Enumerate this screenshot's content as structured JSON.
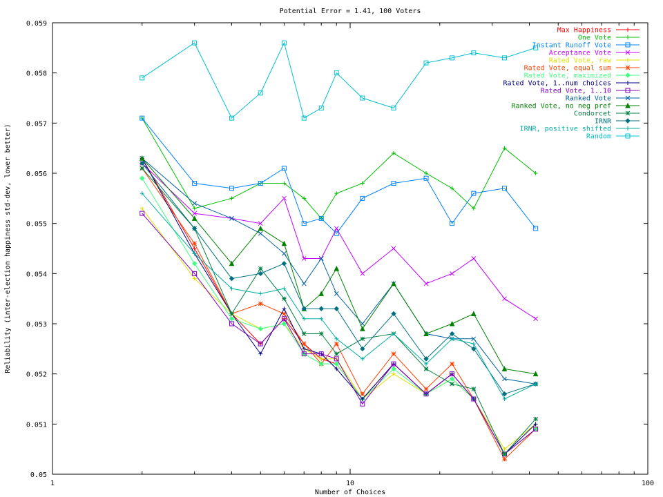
{
  "chart_data": {
    "type": "line",
    "title": "Potential Error = 1.41, 100 Voters",
    "xlabel": "Number of Choices",
    "ylabel": "Reliability (inter-election happiness std-dev, lower better)",
    "x_scale": "log",
    "xlim": [
      1,
      100
    ],
    "ylim": [
      0.05,
      0.059
    ],
    "x_ticks": [
      "1",
      "10",
      "100"
    ],
    "y_ticks": [
      "0.05",
      "0.051",
      "0.052",
      "0.053",
      "0.054",
      "0.055",
      "0.056",
      "0.057",
      "0.058",
      "0.059"
    ],
    "x": [
      2,
      3,
      4,
      5,
      6,
      7,
      8,
      9,
      11,
      14,
      18,
      22,
      26,
      33,
      42
    ],
    "legend_position": "top-right",
    "series": [
      {
        "name": "Max Happiness",
        "color": "#ff0000",
        "marker": "plus",
        "values": [
          0.0563,
          0.0545,
          0.0532,
          0.0526,
          0.0531,
          0.0526,
          0.0523,
          0.0522,
          0.0515,
          0.0522,
          0.0516,
          0.052,
          0.0515,
          0.0504,
          0.0509
        ]
      },
      {
        "name": "One Vote",
        "color": "#00c000",
        "marker": "plus",
        "values": [
          0.0571,
          0.0553,
          0.0555,
          0.0558,
          0.0558,
          0.0555,
          0.0551,
          0.0556,
          0.0558,
          0.0564,
          0.056,
          0.0557,
          0.0553,
          0.0565,
          0.056
        ]
      },
      {
        "name": "Instant Runoff Vote",
        "color": "#0080ff",
        "marker": "square",
        "values": [
          0.0571,
          0.0558,
          0.0557,
          0.0558,
          0.0561,
          0.055,
          0.0551,
          0.0548,
          0.0555,
          0.0558,
          0.0559,
          0.055,
          0.0556,
          0.0557,
          0.0549
        ]
      },
      {
        "name": "Acceptance Vote",
        "color": "#c000ff",
        "marker": "x",
        "values": [
          0.0562,
          0.0552,
          0.0551,
          0.055,
          0.0555,
          0.0543,
          0.0543,
          0.0549,
          0.054,
          0.0545,
          0.0538,
          0.054,
          0.0543,
          0.0535,
          0.0531
        ]
      },
      {
        "name": "Rated Vote, raw",
        "color": "#e0e000",
        "marker": "plus",
        "values": [
          0.0553,
          0.0539,
          0.0532,
          0.0529,
          0.053,
          0.0525,
          0.0523,
          0.0523,
          0.0515,
          0.052,
          0.0516,
          0.0519,
          0.0515,
          0.0505,
          0.051
        ]
      },
      {
        "name": "Rated Vote, equal sum",
        "color": "#ff4000",
        "marker": "star",
        "values": [
          0.0561,
          0.0546,
          0.0532,
          0.0534,
          0.0532,
          0.0526,
          0.0522,
          0.0526,
          0.0516,
          0.0524,
          0.0517,
          0.0522,
          0.0515,
          0.0503,
          0.0509
        ]
      },
      {
        "name": "Rated Vote, maximized",
        "color": "#40ff80",
        "marker": "diamond",
        "values": [
          0.0559,
          0.0542,
          0.0531,
          0.0529,
          0.053,
          0.0524,
          0.0522,
          0.0522,
          0.0515,
          0.0521,
          0.0516,
          0.0519,
          0.0515,
          0.0504,
          0.0509
        ]
      },
      {
        "name": "Rated Vote, 1..num choices",
        "color": "#000080",
        "marker": "plus",
        "values": [
          0.0563,
          0.0544,
          0.0532,
          0.0524,
          0.0533,
          0.0525,
          0.0524,
          0.0521,
          0.0515,
          0.0522,
          0.0516,
          0.052,
          0.0515,
          0.0504,
          0.051
        ]
      },
      {
        "name": "Rated Vote, 1..10",
        "color": "#8000c0",
        "marker": "square",
        "values": [
          0.0552,
          0.054,
          0.053,
          0.0526,
          0.0531,
          0.0524,
          0.0524,
          0.0523,
          0.0514,
          0.0522,
          0.0516,
          0.052,
          0.0515,
          0.0504,
          0.0509
        ]
      },
      {
        "name": "Ranked Vote",
        "color": "#0060a0",
        "marker": "x",
        "values": [
          0.0563,
          0.0554,
          0.0551,
          0.0548,
          0.0544,
          0.0538,
          0.0543,
          0.0536,
          0.053,
          0.0538,
          0.0528,
          0.0527,
          0.0527,
          0.0519,
          0.0518
        ]
      },
      {
        "name": "Ranked Vote, no neg pref",
        "color": "#008000",
        "marker": "triangle",
        "values": [
          0.0563,
          0.0551,
          0.0542,
          0.0549,
          0.0546,
          0.0533,
          0.0536,
          0.0541,
          0.0529,
          0.0538,
          0.0528,
          0.053,
          0.0532,
          0.0521,
          0.052
        ]
      },
      {
        "name": "Condorcet",
        "color": "#008040",
        "marker": "star",
        "values": [
          0.0561,
          0.0549,
          0.0532,
          0.0541,
          0.0535,
          0.0528,
          0.0528,
          0.0524,
          0.0527,
          0.0528,
          0.0521,
          0.0518,
          0.0517,
          0.0504,
          0.0511
        ]
      },
      {
        "name": "IRNR",
        "color": "#007080",
        "marker": "diamond",
        "values": [
          0.0562,
          0.0549,
          0.0539,
          0.054,
          0.0542,
          0.0533,
          0.0533,
          0.0533,
          0.0525,
          0.0532,
          0.0523,
          0.0528,
          0.0525,
          0.0516,
          0.0518
        ]
      },
      {
        "name": "IRNR, positive shifted",
        "color": "#00b0a0",
        "marker": "plus",
        "values": [
          0.0556,
          0.0544,
          0.0537,
          0.0536,
          0.0537,
          0.0531,
          0.0531,
          0.0527,
          0.0523,
          0.0528,
          0.0522,
          0.0527,
          0.0526,
          0.0515,
          0.0518
        ]
      },
      {
        "name": "Random",
        "color": "#00c0d0",
        "marker": "square",
        "values": [
          0.0579,
          0.0586,
          0.0571,
          0.0576,
          0.0586,
          0.0571,
          0.0573,
          0.058,
          0.0575,
          0.0573,
          0.0582,
          0.0583,
          0.0584,
          0.0583,
          0.0585
        ]
      }
    ]
  }
}
